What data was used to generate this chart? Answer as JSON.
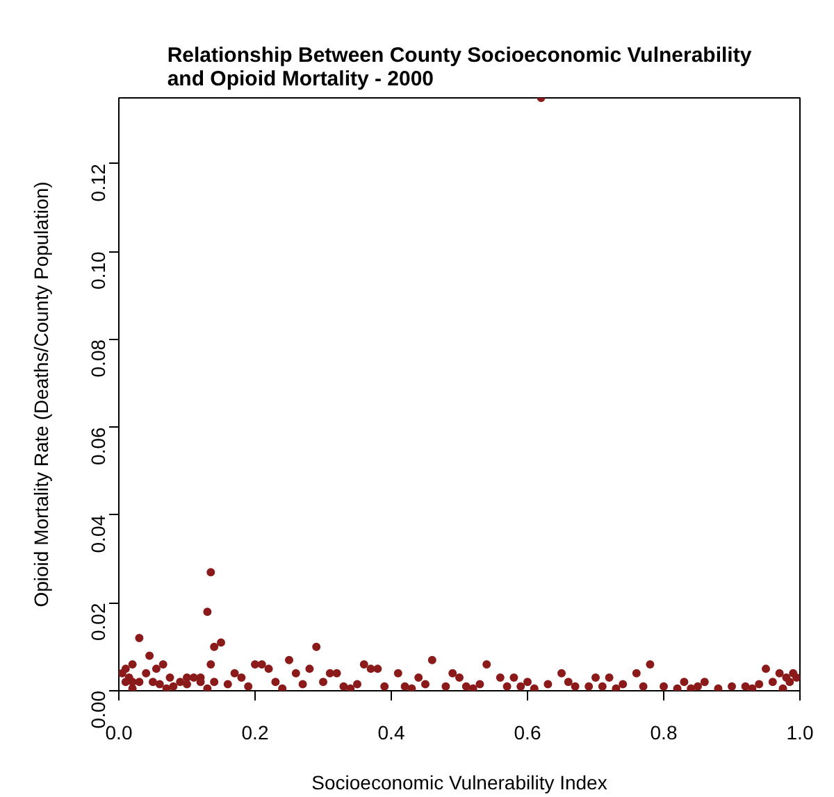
{
  "chart_data": {
    "type": "scatter",
    "title": "Relationship Between County Socioeconomic Vulnerability\nand Opioid Mortality - 2000",
    "xlabel": "Socioeconomic Vulnerability Index",
    "ylabel": "Opioid Mortality Rate (Deaths/County Population)",
    "xlim": [
      0,
      1
    ],
    "ylim": [
      0,
      0.135
    ],
    "xticks": [
      {
        "value": 0,
        "label": "0.0"
      },
      {
        "value": 0.2,
        "label": "0.2"
      },
      {
        "value": 0.4,
        "label": "0.4"
      },
      {
        "value": 0.6,
        "label": "0.6"
      },
      {
        "value": 0.8,
        "label": "0.8"
      },
      {
        "value": 1,
        "label": "1.0"
      }
    ],
    "yticks": [
      {
        "value": 0,
        "label": "0.00"
      },
      {
        "value": 0.02,
        "label": "0.02"
      },
      {
        "value": 0.04,
        "label": "0.04"
      },
      {
        "value": 0.06,
        "label": "0.06"
      },
      {
        "value": 0.08,
        "label": "0.08"
      },
      {
        "value": 0.1,
        "label": "0.10"
      },
      {
        "value": 0.12,
        "label": "0.12"
      }
    ],
    "grid": false,
    "marker": "circle",
    "series": [
      {
        "color": "#8b1a1a",
        "x": [
          0.62,
          0.135,
          0.13,
          0.14,
          0.15,
          0.03,
          0.045,
          0.02,
          0.065,
          0.005,
          0.01,
          0.015,
          0.04,
          0.055,
          0.075,
          0.11,
          0.12,
          0.135,
          0.29,
          0.46,
          0.25,
          0.2,
          0.21,
          0.17,
          0.36,
          0.37,
          0.38,
          0.31,
          0.28,
          0.32,
          0.41,
          0.44,
          0.49,
          0.54,
          0.5,
          0.22,
          0.26,
          0.09,
          0.1,
          0.18,
          0.65,
          0.7,
          0.72,
          0.78,
          0.76,
          0.83,
          0.86,
          0.95,
          0.97,
          0.99,
          0.98,
          0.56,
          0.6,
          0.66,
          0.58,
          0.01,
          0.02,
          0.03,
          0.05,
          0.06,
          0.08,
          0.1,
          0.12,
          0.14,
          0.16,
          0.19,
          0.23,
          0.27,
          0.3,
          0.33,
          0.35,
          0.39,
          0.42,
          0.45,
          0.48,
          0.51,
          0.53,
          0.57,
          0.59,
          0.63,
          0.67,
          0.69,
          0.71,
          0.74,
          0.77,
          0.8,
          0.82,
          0.85,
          0.88,
          0.9,
          0.92,
          0.94,
          0.96,
          0.985,
          0.995,
          0.02,
          0.07,
          0.13,
          0.24,
          0.34,
          0.43,
          0.52,
          0.61,
          0.73,
          0.84,
          0.93,
          0.975
        ],
        "values": [
          0.135,
          0.027,
          0.018,
          0.01,
          0.011,
          0.012,
          0.008,
          0.006,
          0.006,
          0.004,
          0.005,
          0.003,
          0.004,
          0.005,
          0.003,
          0.003,
          0.003,
          0.006,
          0.01,
          0.007,
          0.007,
          0.006,
          0.006,
          0.004,
          0.006,
          0.005,
          0.005,
          0.004,
          0.005,
          0.004,
          0.004,
          0.003,
          0.004,
          0.006,
          0.003,
          0.005,
          0.004,
          0.002,
          0.003,
          0.003,
          0.004,
          0.003,
          0.003,
          0.006,
          0.004,
          0.002,
          0.002,
          0.005,
          0.004,
          0.004,
          0.003,
          0.003,
          0.002,
          0.002,
          0.003,
          0.002,
          0.002,
          0.002,
          0.002,
          0.0015,
          0.001,
          0.0015,
          0.002,
          0.002,
          0.0015,
          0.001,
          0.002,
          0.0015,
          0.002,
          0.001,
          0.0015,
          0.001,
          0.001,
          0.0015,
          0.001,
          0.001,
          0.0015,
          0.001,
          0.001,
          0.0015,
          0.001,
          0.001,
          0.001,
          0.0015,
          0.001,
          0.001,
          0.0005,
          0.001,
          0.0005,
          0.001,
          0.001,
          0.0015,
          0.002,
          0.002,
          0.003,
          0.0005,
          0.0005,
          0.0005,
          0.0005,
          0.0005,
          0.0005,
          0.0005,
          0.0005,
          0.0005,
          0.0005,
          0.0005,
          0.0005
        ]
      }
    ]
  }
}
